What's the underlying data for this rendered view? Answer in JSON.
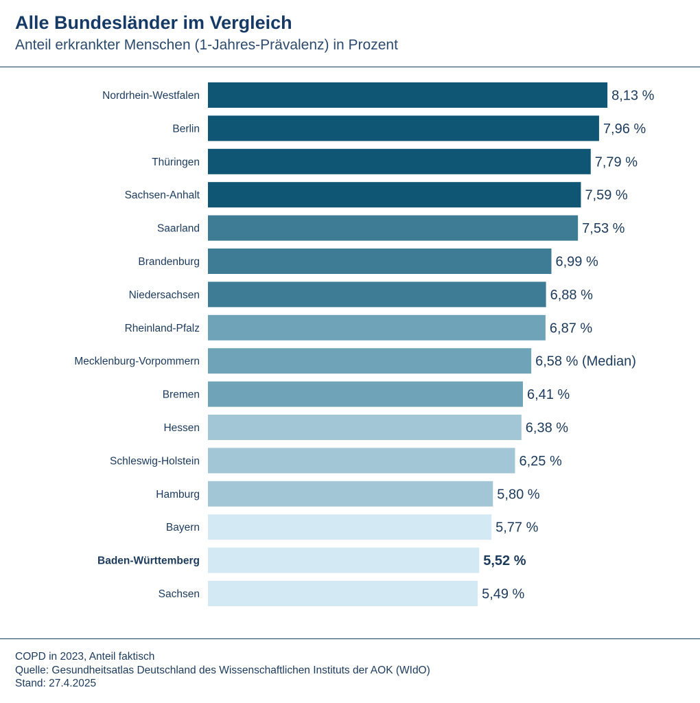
{
  "header": {
    "title": "Alle Bundesländer im Vergleich",
    "subtitle": "Anteil erkrankter Menschen (1-Jahres-Prävalenz) in Prozent"
  },
  "chart_data": {
    "type": "bar",
    "orientation": "horizontal",
    "title": "Alle Bundesländer im Vergleich",
    "subtitle": "Anteil erkrankter Menschen (1-Jahres-Prävalenz) in Prozent",
    "xlabel": "",
    "ylabel": "",
    "grid": false,
    "categories": [
      "Nordrhein-Westfalen",
      "Berlin",
      "Thüringen",
      "Sachsen-Anhalt",
      "Saarland",
      "Brandenburg",
      "Niedersachsen",
      "Rheinland-Pfalz",
      "Mecklenburg-Vorpommern",
      "Bremen",
      "Hessen",
      "Schleswig-Holstein",
      "Hamburg",
      "Bayern",
      "Baden-Württemberg",
      "Sachsen"
    ],
    "values": [
      8.13,
      7.96,
      7.79,
      7.59,
      7.53,
      6.99,
      6.88,
      6.87,
      6.58,
      6.41,
      6.38,
      6.25,
      5.8,
      5.77,
      5.52,
      5.49
    ],
    "value_labels": [
      "8,13 %",
      "7,96 %",
      "7,79 %",
      "7,59 %",
      "7,53 %",
      "6,99 %",
      "6,88 %",
      "6,87 %",
      "6,58 % (Median)",
      "6,41 %",
      "6,38 %",
      "6,25 %",
      "5,80 %",
      "5,77 %",
      "5,52 %",
      "5,49 %"
    ],
    "highlighted_category": "Baden-Württemberg",
    "median_category": "Mecklenburg-Vorpommern",
    "colors": [
      "#0f5574",
      "#0f5574",
      "#0f5574",
      "#0f5574",
      "#3e7b95",
      "#3e7b95",
      "#3e7b95",
      "#6fa3b8",
      "#6fa3b8",
      "#6fa3b8",
      "#a2c6d5",
      "#a2c6d5",
      "#a2c6d5",
      "#d3e9f4",
      "#d3e9f4",
      "#d3e9f4"
    ]
  },
  "footer": {
    "note": "COPD in 2023, Anteil faktisch",
    "source": "Quelle: Gesundheitsatlas Deutschland des Wissenschaftlichen Instituts der AOK (WIdO)",
    "date": "Stand: 27.4.2025"
  }
}
